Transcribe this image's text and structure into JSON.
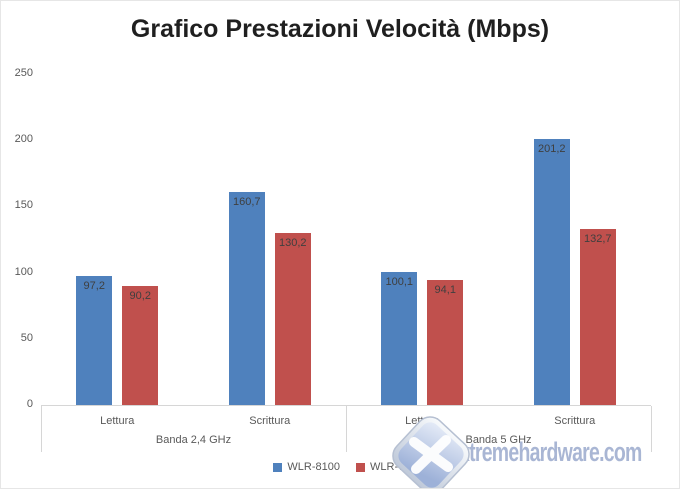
{
  "title": "Grafico Prestazioni Velocità (Mbps)",
  "watermark": {
    "text": "xtremehardware.com",
    "logo": "x-key-icon",
    "color": "#a4b2d2"
  },
  "colors": {
    "series_blue": "#4F81BD",
    "series_red": "#C0504D",
    "axis_text": "#595959",
    "value_label_text": "#3f3f3f",
    "grid_line": "#d6d6d6",
    "title_text": "#1f1f1f"
  },
  "chart_data": {
    "type": "bar",
    "title": "Grafico Prestazioni Velocità (Mbps)",
    "group_labels": [
      "Banda 2,4 GHz",
      "Banda 5 GHz"
    ],
    "categories": [
      "Lettura",
      "Scrittura",
      "Lettura",
      "Scrittura"
    ],
    "series": [
      {
        "name": "WLR-8100",
        "color": "#4F81BD",
        "values": [
          97.2,
          160.7,
          100.1,
          201.2
        ],
        "labels": [
          "97,2",
          "160,7",
          "100,1",
          "201,2"
        ]
      },
      {
        "name": "WLR-7100",
        "color": "#C0504D",
        "values": [
          90.2,
          130.2,
          94.1,
          132.7
        ],
        "labels": [
          "90,2",
          "130,2",
          "94,1",
          "132,7"
        ]
      }
    ],
    "ylim": [
      0,
      250
    ],
    "yticks": [
      0,
      50,
      100,
      150,
      200,
      250
    ],
    "xlabel": "",
    "ylabel": "",
    "grid": false,
    "legend_position": "bottom",
    "value_label_position": "inside-end",
    "decimal_separator": ","
  }
}
